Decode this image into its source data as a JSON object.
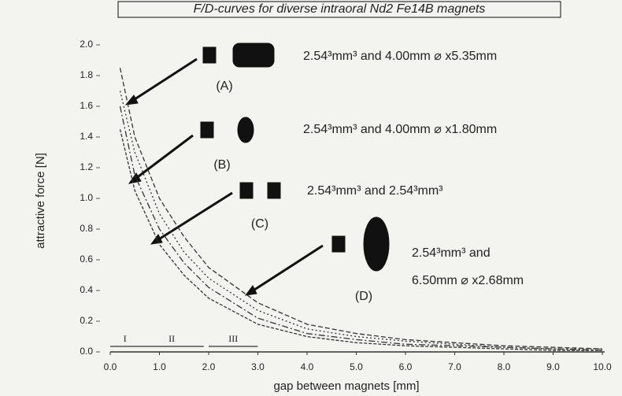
{
  "chart_data": {
    "type": "line",
    "title": "F/D-curves for diverse intraoral Nd2 Fe14B magnets",
    "x_label": "gap between magnets [mm]",
    "y_label": "attractive force [N]",
    "x": [
      0.2,
      0.5,
      1,
      1.5,
      2,
      3,
      4,
      5,
      6,
      7,
      8,
      9,
      10
    ],
    "series": [
      {
        "name": "(A)",
        "color": "#333333",
        "values": [
          1.85,
          1.4,
          1.0,
          0.75,
          0.55,
          0.32,
          0.18,
          0.12,
          0.08,
          0.06,
          0.04,
          0.03,
          0.02
        ]
      },
      {
        "name": "(B)",
        "color": "#333333",
        "values": [
          1.7,
          1.3,
          0.9,
          0.65,
          0.48,
          0.27,
          0.15,
          0.1,
          0.07,
          0.05,
          0.03,
          0.02,
          0.02
        ]
      },
      {
        "name": "(C)",
        "color": "#333333",
        "values": [
          1.6,
          1.15,
          0.8,
          0.58,
          0.42,
          0.22,
          0.12,
          0.08,
          0.05,
          0.04,
          0.03,
          0.02,
          0.01
        ]
      },
      {
        "name": "(D)",
        "color": "#333333",
        "values": [
          1.45,
          1.05,
          0.7,
          0.5,
          0.35,
          0.18,
          0.1,
          0.06,
          0.04,
          0.03,
          0.02,
          0.01,
          0.01
        ]
      }
    ],
    "annotations": [
      {
        "text": [
          "2.54³mm³ and 4.00mm ⌀ x5.35mm"
        ]
      },
      {
        "text": [
          "2.54³mm³ and 4.00mm ⌀ x1.80mm"
        ]
      },
      {
        "text": [
          "2.54³mm³ and 2.54³mm³"
        ]
      },
      {
        "text": [
          "2.54³mm³ and",
          "6.50mm ⌀ x2.68mm"
        ]
      }
    ],
    "regions": [
      {
        "label": "I",
        "range": [
          0.0,
          0.6
        ]
      },
      {
        "label": "II",
        "range": [
          0.6,
          1.9
        ]
      },
      {
        "label": "III",
        "range": [
          2.0,
          3.0
        ]
      }
    ],
    "xlim": [
      0,
      10
    ],
    "ylim": [
      0,
      2
    ],
    "xticks": [
      {
        "value": 0,
        "label": "0.0"
      },
      {
        "value": 1,
        "label": "1.0"
      },
      {
        "value": 2,
        "label": "2.0"
      },
      {
        "value": 3,
        "label": "3.0"
      },
      {
        "value": 4,
        "label": "4.0"
      },
      {
        "value": 5,
        "label": "5.0"
      },
      {
        "value": 6,
        "label": "6.0"
      },
      {
        "value": 7,
        "label": "7.0"
      },
      {
        "value": 8,
        "label": "8.0"
      },
      {
        "value": 9,
        "label": "9.0"
      },
      {
        "value": 10,
        "label": "10.0"
      }
    ],
    "yticks": [
      {
        "value": 0,
        "label": "0.0"
      },
      0.2,
      0.4,
      0.6,
      0.8,
      {
        "value": 1,
        "label": "1.0"
      },
      1.2,
      1.4,
      1.6,
      1.8,
      {
        "value": 2,
        "label": "2.0"
      }
    ]
  }
}
